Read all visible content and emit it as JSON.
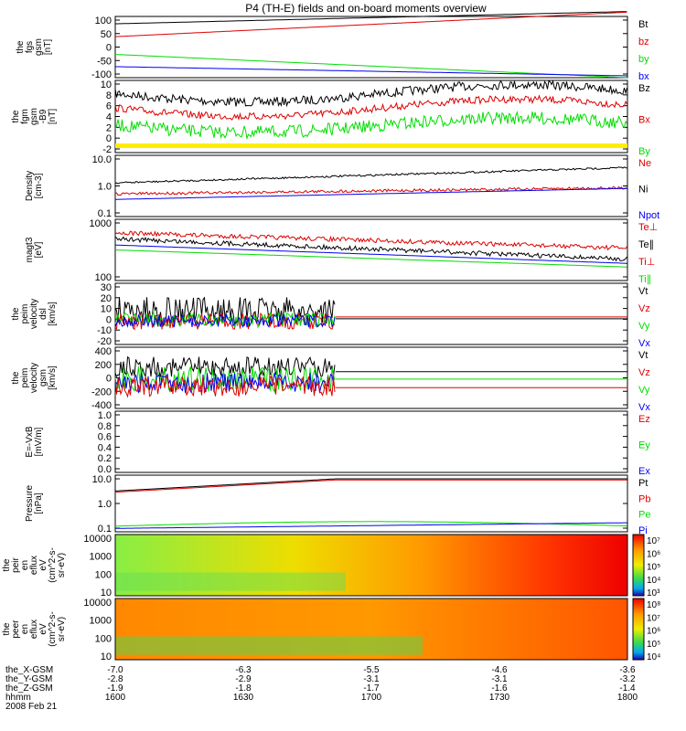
{
  "title": "P4 (TH-E) fields and on-board moments overview",
  "date": "2008 Feb 21",
  "colors": {
    "black": "#000000",
    "red": "#dd0000",
    "green": "#00dd00",
    "blue": "#0000ee",
    "yellow": "#ffee00"
  },
  "panels": [
    {
      "id": "fgs",
      "ylabel": [
        "the",
        "fgs",
        "gsm",
        "[nT]"
      ],
      "ticks": [
        "100",
        "50",
        "0",
        "-50",
        "-100"
      ],
      "legend": [
        [
          "Bt",
          "black"
        ],
        [
          "bz",
          "red"
        ],
        [
          "by",
          "green"
        ],
        [
          "bx",
          "blue"
        ]
      ]
    },
    {
      "id": "fgm",
      "ylabel": [
        "the",
        "fgm",
        "gsm",
        "-B9",
        "[nT]"
      ],
      "ticks": [
        "10",
        "8",
        "6",
        "4",
        "2",
        "0",
        "-2"
      ],
      "legend": [
        [
          "Bz",
          "black"
        ],
        [
          "Bx",
          "red"
        ],
        [
          "By",
          "green"
        ]
      ]
    },
    {
      "id": "density",
      "ylabel": [
        "Density",
        "[cm-3]"
      ],
      "ticks": [
        "10.0",
        "1.0",
        "0.1"
      ],
      "legend": [
        [
          "Ne",
          "red"
        ],
        [
          "Ni",
          "black"
        ],
        [
          "Npot",
          "blue"
        ]
      ]
    },
    {
      "id": "temp",
      "ylabel": [
        "magt3",
        "[eV]"
      ],
      "ticks": [
        "1000",
        "100"
      ],
      "legend": [
        [
          "Te⊥",
          "red"
        ],
        [
          "Te∥",
          "black"
        ],
        [
          "Ti⊥",
          "red"
        ],
        [
          "Ti∥",
          "green"
        ]
      ]
    },
    {
      "id": "peim",
      "ylabel": [
        "the",
        "peim",
        "velocity",
        "dsl",
        "[km/s]"
      ],
      "ticks": [
        "30",
        "20",
        "10",
        "0",
        "-10",
        "-20"
      ],
      "legend": [
        [
          "Vt",
          "black"
        ],
        [
          "Vz",
          "red"
        ],
        [
          "Vy",
          "green"
        ],
        [
          "Vx",
          "blue"
        ]
      ]
    },
    {
      "id": "peimgsm",
      "ylabel": [
        "the",
        "peim",
        "velocity",
        "gsm",
        "[km/s]"
      ],
      "ticks": [
        "400",
        "200",
        "0",
        "-200",
        "-400"
      ],
      "legend": [
        [
          "Vt",
          "black"
        ],
        [
          "Vz",
          "red"
        ],
        [
          "Vy",
          "green"
        ],
        [
          "Vx",
          "blue"
        ]
      ]
    },
    {
      "id": "efield",
      "ylabel": [
        "E=-VxB",
        "[mV/m]"
      ],
      "ticks": [
        "1.0",
        "0.8",
        "0.6",
        "0.4",
        "0.2",
        "0.0"
      ],
      "legend": [
        [
          "Ez",
          "red"
        ],
        [
          "Ey",
          "green"
        ],
        [
          "Ex",
          "blue"
        ]
      ]
    },
    {
      "id": "pressure",
      "ylabel": [
        "Pressure",
        "[nPa]"
      ],
      "ticks": [
        "10.0",
        "1.0",
        "0.1"
      ],
      "legend": [
        [
          "Pt",
          "black"
        ],
        [
          "Pb",
          "red"
        ],
        [
          "Pe",
          "green"
        ],
        [
          "Pi",
          "blue"
        ]
      ]
    },
    {
      "id": "peir",
      "ylabel": [
        "the",
        "peir",
        "en",
        "eflux",
        "eV",
        "(cm^2-s-",
        "sr-eV)"
      ],
      "ticks": [
        "10000",
        "1000",
        "100",
        "10"
      ],
      "colorbar": [
        "10⁷",
        "10⁶",
        "10⁵",
        "10⁴",
        "10³"
      ]
    },
    {
      "id": "peer",
      "ylabel": [
        "the",
        "peer",
        "en",
        "eflux",
        "eV",
        "(cm^2-s-",
        "sr-eV)"
      ],
      "ticks": [
        "10000",
        "1000",
        "100",
        "10"
      ],
      "colorbar": [
        "10⁸",
        "10⁷",
        "10⁶",
        "10⁵",
        "10⁴"
      ]
    }
  ],
  "chart_data": {
    "type": "line",
    "x_ticks": [
      "1600",
      "1630",
      "1700",
      "1730",
      "1800"
    ],
    "bottom_labels": [
      "the_X-GSM",
      "the_Y-GSM",
      "the_Z-GSM",
      "hhmm"
    ],
    "ephemeris": {
      "the_X-GSM": [
        "-7.0",
        "-6.3",
        "-5.5",
        "-4.6",
        "-3.6"
      ],
      "the_Y-GSM": [
        "-2.8",
        "-2.9",
        "-3.1",
        "-3.1",
        "-3.2"
      ],
      "the_Z-GSM": [
        "-1.9",
        "-1.8",
        "-1.7",
        "-1.6",
        "-1.4"
      ],
      "hhmm": [
        "1600",
        "1630",
        "1700",
        "1730",
        "1800"
      ]
    }
  }
}
